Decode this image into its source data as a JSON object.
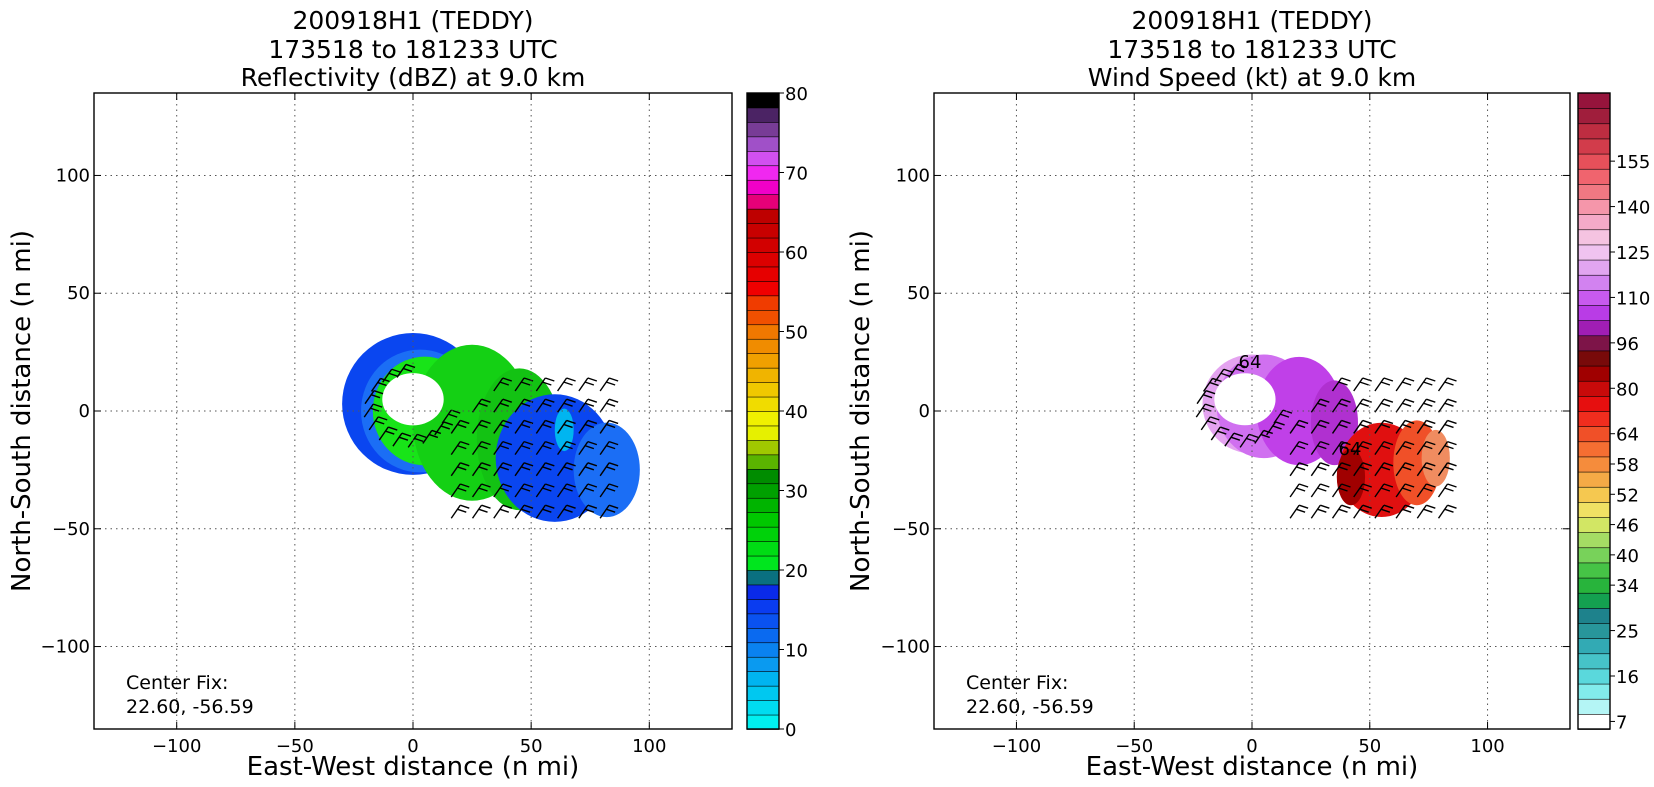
{
  "chart_data": [
    {
      "type": "heatmap",
      "title": [
        "200918H1 (TEDDY)",
        "173518 to 181233 UTC",
        "Reflectivity (dBZ) at 9.0 km"
      ],
      "xlabel": "East-West distance (n mi)",
      "ylabel": "North-South distance (n mi)",
      "xlim": [
        -135,
        135
      ],
      "ylim": [
        -135,
        135
      ],
      "xticks": [
        -100,
        -50,
        0,
        50,
        100
      ],
      "yticks": [
        -100,
        -50,
        0,
        50,
        100
      ],
      "grid": true,
      "annotation": [
        "Center Fix:",
        "22.60, -56.59"
      ],
      "field": {
        "eye_center": [
          0,
          5
        ],
        "eye_radius": 13,
        "rings": [
          {
            "cx": 0,
            "cy": 3,
            "rx": 30,
            "ry": 30,
            "color": "#0a46f0"
          },
          {
            "cx": 3,
            "cy": 0,
            "rx": 25,
            "ry": 26,
            "color": "#1b6ef5"
          },
          {
            "cx": 5,
            "cy": 0,
            "rx": 22,
            "ry": 23,
            "color": "#18e418"
          },
          {
            "cx": 25,
            "cy": -5,
            "rx": 25,
            "ry": 33,
            "color": "#14d014"
          },
          {
            "cx": 45,
            "cy": -12,
            "rx": 18,
            "ry": 30,
            "color": "#13c213"
          },
          {
            "cx": 60,
            "cy": -20,
            "rx": 25,
            "ry": 27,
            "color": "#0a46f0"
          },
          {
            "cx": 82,
            "cy": -25,
            "rx": 14,
            "ry": 20,
            "color": "#1b6ef5"
          },
          {
            "cx": 64,
            "cy": -8,
            "rx": 4,
            "ry": 9,
            "color": "#00b5f0"
          }
        ]
      },
      "colorbar": {
        "min": 0,
        "max": 80,
        "tick_labels": [
          "0",
          "10",
          "20",
          "30",
          "40",
          "50",
          "60",
          "70",
          "80"
        ],
        "tick_values": [
          0,
          10,
          20,
          30,
          40,
          50,
          60,
          70,
          80
        ],
        "colors": [
          "#00f0f0",
          "#00dcf0",
          "#00c8f0",
          "#00b4f0",
          "#0a9af0",
          "#0a82f0",
          "#0a6af0",
          "#0a52f0",
          "#0a3cf0",
          "#0a2ae8",
          "#0a7080",
          "#00e61e",
          "#00dc14",
          "#00d20a",
          "#00c800",
          "#00b400",
          "#00a000",
          "#008c00",
          "#5ab400",
          "#a0c800",
          "#e6f000",
          "#f0f000",
          "#f0dc00",
          "#f0c800",
          "#f0b400",
          "#f0a000",
          "#f08c00",
          "#f07800",
          "#f05000",
          "#f03c00",
          "#f00000",
          "#e60000",
          "#dc0000",
          "#d20000",
          "#c80000",
          "#be0000",
          "#e60078",
          "#f000c8",
          "#f028f0",
          "#d250f0",
          "#a050c8",
          "#783c96",
          "#4b2364",
          "#000000"
        ]
      }
    },
    {
      "type": "heatmap",
      "title": [
        "200918H1 (TEDDY)",
        "173518 to 181233 UTC",
        "Wind Speed (kt) at 9.0 km"
      ],
      "xlabel": "East-West distance (n mi)",
      "ylabel": "North-South distance (n mi)",
      "xlim": [
        -135,
        135
      ],
      "ylim": [
        -135,
        135
      ],
      "xticks": [
        -100,
        -50,
        0,
        50,
        100
      ],
      "yticks": [
        -100,
        -50,
        0,
        50,
        100
      ],
      "grid": true,
      "annotation": [
        "Center Fix:",
        "22.60, -56.59"
      ],
      "contour_labels": [
        "64",
        "64"
      ],
      "field": {
        "eye_center": [
          -3,
          5
        ],
        "eye_radius": 13,
        "rings": [
          {
            "cx": 0,
            "cy": 3,
            "rx": 21,
            "ry": 21,
            "color": "#e4a3f0"
          },
          {
            "cx": 5,
            "cy": 2,
            "rx": 20,
            "ry": 22,
            "color": "#d070f0"
          },
          {
            "cx": 20,
            "cy": 0,
            "rx": 18,
            "ry": 23,
            "color": "#c040e8"
          },
          {
            "cx": 35,
            "cy": -5,
            "rx": 10,
            "ry": 18,
            "color": "#b030d0"
          },
          {
            "cx": 55,
            "cy": -25,
            "rx": 18,
            "ry": 20,
            "color": "#e01010"
          },
          {
            "cx": 70,
            "cy": -22,
            "rx": 10,
            "ry": 18,
            "color": "#f05028"
          },
          {
            "cx": 78,
            "cy": -20,
            "rx": 6,
            "ry": 12,
            "color": "#f08c60"
          },
          {
            "cx": 42,
            "cy": -28,
            "rx": 6,
            "ry": 12,
            "color": "#a00000"
          }
        ]
      },
      "colorbar": {
        "tick_labels": [
          "7",
          "16",
          "25",
          "34",
          "40",
          "46",
          "52",
          "58",
          "64",
          "80",
          "96",
          "110",
          "125",
          "140",
          "155"
        ],
        "tick_levels": [
          0,
          3,
          6,
          9,
          11,
          13,
          15,
          17,
          19,
          22,
          25,
          28,
          31,
          34,
          37
        ],
        "colors": [
          "#ffffff",
          "#b4f5f5",
          "#82ecec",
          "#5ad8dc",
          "#46c3c8",
          "#32aab4",
          "#28969b",
          "#1e828c",
          "#14a050",
          "#28b43c",
          "#46c346",
          "#78d25a",
          "#a5dc64",
          "#d2e664",
          "#f0e164",
          "#f5c850",
          "#f5aa46",
          "#f58c3c",
          "#f56e32",
          "#f05028",
          "#f02d1e",
          "#e60f0f",
          "#c80a0a",
          "#a00000",
          "#780a0a",
          "#7d1448",
          "#a01eb4",
          "#b93ce6",
          "#c85aee",
          "#d282f0",
          "#e1a5f0",
          "#f0c3f0",
          "#f5c3e1",
          "#f5aac8",
          "#f596aa",
          "#f07882",
          "#f0646e",
          "#e6505a",
          "#d23c4b",
          "#be2d41",
          "#a01e3c",
          "#96143c"
        ]
      }
    }
  ]
}
